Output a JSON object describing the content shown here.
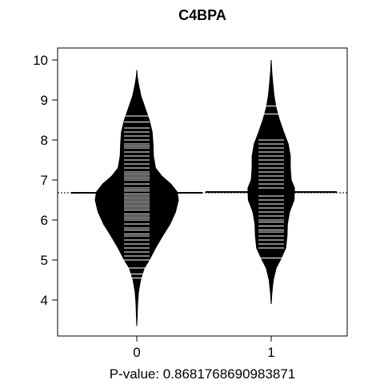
{
  "chart_data": {
    "type": "beanplot",
    "title": "C4BPA",
    "xlabel": "P-value: 0.8681768690983871",
    "ylabel": "",
    "categories": [
      "0",
      "1"
    ],
    "ylim": [
      3.1,
      10.3
    ],
    "yticks": [
      4,
      5,
      6,
      7,
      8,
      9,
      10
    ],
    "overall_mean": 6.68,
    "grid": false,
    "colors": {
      "bean_fill": "#000000",
      "bean_lines": "#ffffff",
      "axis": "#000000"
    },
    "beans": [
      {
        "category": "0",
        "mean": 6.68,
        "density": [
          [
            3.35,
            0.0
          ],
          [
            3.6,
            0.01
          ],
          [
            3.9,
            0.02
          ],
          [
            4.2,
            0.04
          ],
          [
            4.5,
            0.09
          ],
          [
            4.8,
            0.18
          ],
          [
            5.0,
            0.3
          ],
          [
            5.3,
            0.45
          ],
          [
            5.6,
            0.62
          ],
          [
            5.9,
            0.8
          ],
          [
            6.2,
            0.93
          ],
          [
            6.5,
            1.0
          ],
          [
            6.7,
            0.97
          ],
          [
            6.9,
            0.82
          ],
          [
            7.1,
            0.6
          ],
          [
            7.3,
            0.45
          ],
          [
            7.6,
            0.4
          ],
          [
            7.9,
            0.39
          ],
          [
            8.2,
            0.37
          ],
          [
            8.5,
            0.3
          ],
          [
            8.8,
            0.2
          ],
          [
            9.1,
            0.1
          ],
          [
            9.4,
            0.04
          ],
          [
            9.6,
            0.01
          ],
          [
            9.75,
            0.0
          ]
        ],
        "observations": [
          4.55,
          4.65,
          4.8,
          5.0,
          5.1,
          5.2,
          5.3,
          5.4,
          5.5,
          5.6,
          5.65,
          5.75,
          5.8,
          5.9,
          6.0,
          6.05,
          6.1,
          6.15,
          6.25,
          6.3,
          6.35,
          6.4,
          6.45,
          6.5,
          6.55,
          6.6,
          6.65,
          6.7,
          6.75,
          6.8,
          6.9,
          7.0,
          7.05,
          7.1,
          7.15,
          7.2,
          7.3,
          7.4,
          7.5,
          7.6,
          7.7,
          7.8,
          7.85,
          7.9,
          8.0,
          8.1,
          8.2,
          8.3,
          8.45,
          8.6
        ]
      },
      {
        "category": "1",
        "mean": 6.7,
        "density": [
          [
            3.9,
            0.0
          ],
          [
            4.2,
            0.02
          ],
          [
            4.5,
            0.05
          ],
          [
            4.8,
            0.12
          ],
          [
            5.0,
            0.22
          ],
          [
            5.3,
            0.35
          ],
          [
            5.6,
            0.38
          ],
          [
            5.9,
            0.39
          ],
          [
            6.2,
            0.44
          ],
          [
            6.5,
            0.55
          ],
          [
            6.8,
            0.56
          ],
          [
            7.0,
            0.48
          ],
          [
            7.3,
            0.46
          ],
          [
            7.6,
            0.46
          ],
          [
            7.9,
            0.41
          ],
          [
            8.2,
            0.3
          ],
          [
            8.5,
            0.2
          ],
          [
            8.8,
            0.12
          ],
          [
            9.1,
            0.07
          ],
          [
            9.4,
            0.04
          ],
          [
            9.7,
            0.015
          ],
          [
            10.0,
            0.0
          ]
        ],
        "observations": [
          5.05,
          5.3,
          5.4,
          5.5,
          5.6,
          5.7,
          5.75,
          5.85,
          5.95,
          6.0,
          6.1,
          6.2,
          6.3,
          6.4,
          6.5,
          6.6,
          6.7,
          6.8,
          6.9,
          7.0,
          7.1,
          7.2,
          7.3,
          7.4,
          7.5,
          7.6,
          7.7,
          7.8,
          7.9,
          8.0,
          8.65,
          8.85
        ]
      }
    ]
  }
}
